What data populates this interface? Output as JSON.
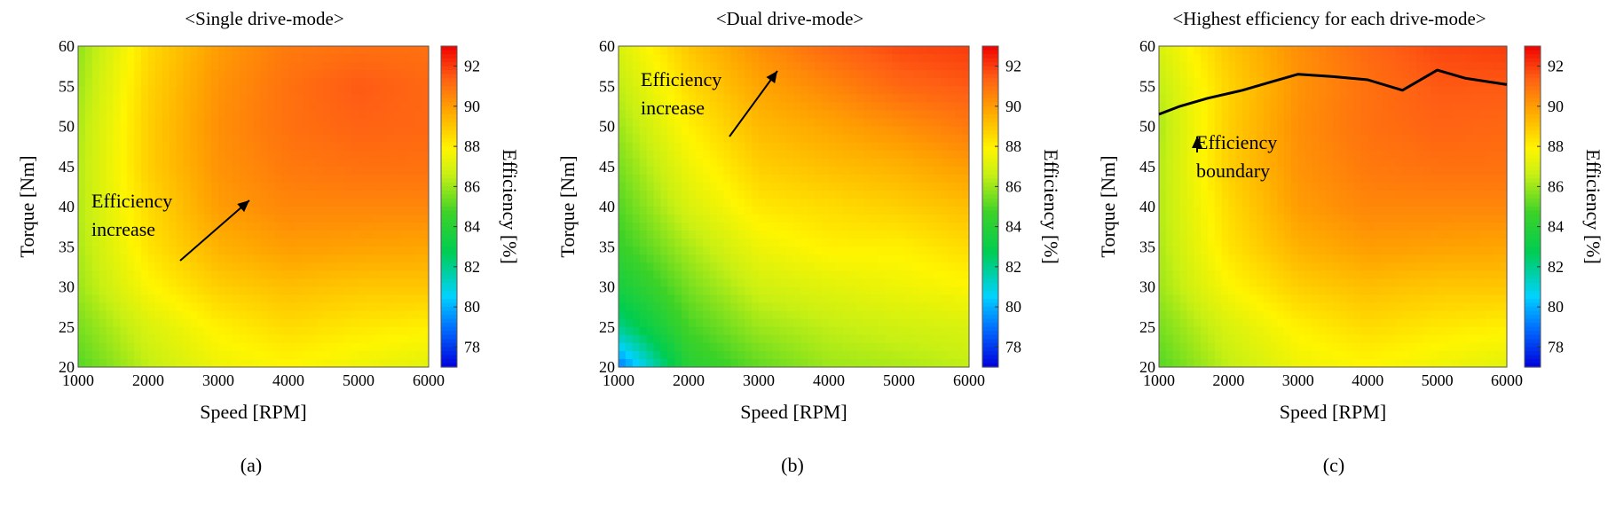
{
  "chart_data": [
    {
      "type": "heatmap",
      "panel": "a",
      "title": "<Single drive-mode>",
      "caption": "(a)",
      "xlabel": "Speed [RPM]",
      "ylabel": "Torque [Nm]",
      "xlim": [
        1000,
        6000
      ],
      "ylim": [
        20,
        60
      ],
      "x_ticks": [
        1000,
        2000,
        3000,
        4000,
        5000,
        6000
      ],
      "y_ticks": [
        20,
        25,
        30,
        35,
        40,
        45,
        50,
        55,
        60
      ],
      "colorbar": {
        "label": "Efficiency [%]",
        "range": [
          77,
          93
        ],
        "ticks": [
          78,
          80,
          82,
          84,
          86,
          88,
          90,
          92
        ]
      },
      "x": [
        1000,
        2000,
        3000,
        4000,
        5000,
        6000
      ],
      "y": [
        20,
        25,
        30,
        35,
        40,
        45,
        50,
        55,
        60
      ],
      "z": [
        [
          85,
          86.5,
          87.5,
          87.8,
          87.5,
          87.2
        ],
        [
          85.5,
          87,
          88,
          88.5,
          88.2,
          88
        ],
        [
          86,
          87.8,
          88.8,
          89.2,
          89,
          89
        ],
        [
          86.2,
          88.3,
          89.5,
          90,
          89.9,
          89.8
        ],
        [
          86.3,
          88.5,
          90,
          90.5,
          90.5,
          90.5
        ],
        [
          86.3,
          88.8,
          90.2,
          90.8,
          91,
          91
        ],
        [
          86.2,
          88.8,
          90.3,
          91,
          91.3,
          91.2
        ],
        [
          86,
          88.7,
          90.2,
          91,
          91.5,
          91.2
        ],
        [
          85.8,
          88.5,
          90,
          90.8,
          91,
          91
        ]
      ],
      "annotations": [
        {
          "text": [
            "Efficiency",
            "increase"
          ],
          "arrow": true
        }
      ]
    },
    {
      "type": "heatmap",
      "panel": "b",
      "title": "<Dual drive-mode>",
      "caption": "(b)",
      "xlabel": "Speed [RPM]",
      "ylabel": "Torque [Nm]",
      "xlim": [
        1000,
        6000
      ],
      "ylim": [
        20,
        60
      ],
      "x_ticks": [
        1000,
        2000,
        3000,
        4000,
        5000,
        6000
      ],
      "y_ticks": [
        20,
        25,
        30,
        35,
        40,
        45,
        50,
        55,
        60
      ],
      "colorbar": {
        "label": "Efficiency [%]",
        "range": [
          77,
          93
        ],
        "ticks": [
          78,
          80,
          82,
          84,
          86,
          88,
          90,
          92
        ]
      },
      "x": [
        1000,
        2000,
        3000,
        4000,
        5000,
        6000
      ],
      "y": [
        20,
        25,
        30,
        35,
        40,
        45,
        50,
        55,
        60
      ],
      "z": [
        [
          79,
          84,
          85.2,
          86,
          86.2,
          86.5
        ],
        [
          82,
          84.8,
          86,
          86.5,
          86.8,
          87
        ],
        [
          83.5,
          85.5,
          86.8,
          87.2,
          87.5,
          87.8
        ],
        [
          84.5,
          86.2,
          87.5,
          88,
          88,
          88.5
        ],
        [
          85,
          87,
          88.2,
          88.5,
          88.8,
          89.2
        ],
        [
          85.5,
          87.5,
          88.8,
          89.2,
          89.5,
          90
        ],
        [
          86,
          88,
          89.3,
          89.8,
          90.3,
          90.8
        ],
        [
          86.5,
          88.5,
          89.8,
          90.5,
          91.2,
          91.5
        ],
        [
          87,
          89,
          90.3,
          91.2,
          91.8,
          92
        ]
      ],
      "annotations": [
        {
          "text": [
            "Efficiency",
            "increase"
          ],
          "arrow": true
        }
      ]
    },
    {
      "type": "heatmap",
      "panel": "c",
      "title": "<Highest efficiency for each drive-mode>",
      "caption": "(c)",
      "xlabel": "Speed [RPM]",
      "ylabel": "Torque [Nm]",
      "xlim": [
        1000,
        6000
      ],
      "ylim": [
        20,
        60
      ],
      "x_ticks": [
        1000,
        2000,
        3000,
        4000,
        5000,
        6000
      ],
      "y_ticks": [
        20,
        25,
        30,
        35,
        40,
        45,
        50,
        55,
        60
      ],
      "colorbar": {
        "label": "Efficiency [%]",
        "range": [
          77,
          93
        ],
        "ticks": [
          78,
          80,
          82,
          84,
          86,
          88,
          90,
          92
        ]
      },
      "x": [
        1000,
        2000,
        3000,
        4000,
        5000,
        6000
      ],
      "y": [
        20,
        25,
        30,
        35,
        40,
        45,
        50,
        55,
        60
      ],
      "z": [
        [
          85,
          86.5,
          87.5,
          87.8,
          87.5,
          87.2
        ],
        [
          85.5,
          87,
          88,
          88.5,
          88.2,
          88
        ],
        [
          86,
          87.8,
          88.8,
          89.2,
          89,
          89
        ],
        [
          86.2,
          88.3,
          89.5,
          90,
          89.9,
          89.8
        ],
        [
          86.3,
          88.5,
          90,
          90.5,
          90.5,
          90.5
        ],
        [
          86.3,
          88.8,
          90.2,
          90.8,
          91,
          91
        ],
        [
          86.2,
          88.8,
          90.3,
          91,
          91.3,
          91.2
        ],
        [
          86.5,
          88.7,
          90.2,
          91,
          91.5,
          91.5
        ],
        [
          87,
          89,
          90.3,
          91.2,
          91.8,
          92
        ]
      ],
      "boundary": {
        "x": [
          1000,
          1300,
          1700,
          2200,
          2600,
          3000,
          3500,
          4000,
          4500,
          5000,
          5400,
          6000
        ],
        "y": [
          51.5,
          52.5,
          53.5,
          54.5,
          55.5,
          56.5,
          56.2,
          55.8,
          54.5,
          57,
          56,
          55.2
        ]
      },
      "annotations": [
        {
          "text": [
            "Efficiency",
            "boundary"
          ],
          "arrow": true
        }
      ]
    }
  ]
}
